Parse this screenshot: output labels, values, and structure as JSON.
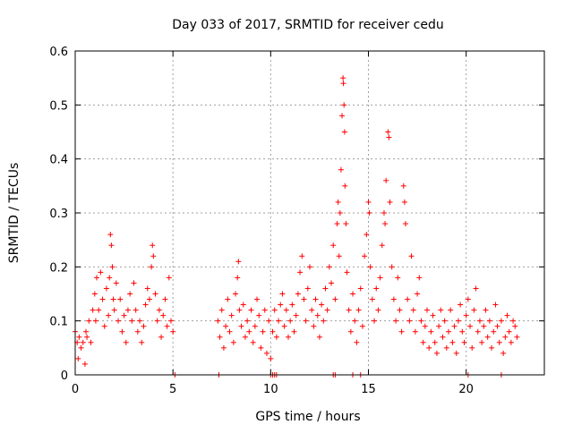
{
  "chart_data": {
    "type": "scatter",
    "title": "Day 033 of 2017, SRMTID for receiver cedu",
    "xlabel": "GPS time / hours",
    "ylabel": "SRMTID / TECUs",
    "xlim": [
      0,
      24
    ],
    "ylim": [
      0,
      0.6
    ],
    "xticks": [
      0,
      5,
      10,
      15,
      20
    ],
    "yticks": [
      0,
      0.1,
      0.2,
      0.3,
      0.4,
      0.5,
      0.6
    ],
    "grid": true,
    "marker": "+",
    "color": "#ff0000",
    "series": [
      {
        "name": "SRMTID",
        "points": [
          [
            0.0,
            0.08
          ],
          [
            0.1,
            0.06
          ],
          [
            0.15,
            0.03
          ],
          [
            0.2,
            0.07
          ],
          [
            0.3,
            0.05
          ],
          [
            0.4,
            0.06
          ],
          [
            0.5,
            0.02
          ],
          [
            0.55,
            0.08
          ],
          [
            0.6,
            0.07
          ],
          [
            0.7,
            0.1
          ],
          [
            0.8,
            0.06
          ],
          [
            0.9,
            0.12
          ],
          [
            1.0,
            0.15
          ],
          [
            1.05,
            0.1
          ],
          [
            1.1,
            0.18
          ],
          [
            1.2,
            0.12
          ],
          [
            1.3,
            0.19
          ],
          [
            1.4,
            0.14
          ],
          [
            1.5,
            0.09
          ],
          [
            1.6,
            0.16
          ],
          [
            1.7,
            0.11
          ],
          [
            1.75,
            0.18
          ],
          [
            1.8,
            0.26
          ],
          [
            1.85,
            0.24
          ],
          [
            1.9,
            0.2
          ],
          [
            1.95,
            0.14
          ],
          [
            2.0,
            0.12
          ],
          [
            2.1,
            0.17
          ],
          [
            2.2,
            0.1
          ],
          [
            2.3,
            0.14
          ],
          [
            2.4,
            0.08
          ],
          [
            2.5,
            0.11
          ],
          [
            2.6,
            0.06
          ],
          [
            2.7,
            0.12
          ],
          [
            2.8,
            0.15
          ],
          [
            2.9,
            0.1
          ],
          [
            3.0,
            0.17
          ],
          [
            3.1,
            0.12
          ],
          [
            3.2,
            0.08
          ],
          [
            3.3,
            0.1
          ],
          [
            3.4,
            0.06
          ],
          [
            3.5,
            0.09
          ],
          [
            3.6,
            0.13
          ],
          [
            3.7,
            0.16
          ],
          [
            3.8,
            0.14
          ],
          [
            3.9,
            0.2
          ],
          [
            3.95,
            0.24
          ],
          [
            4.0,
            0.22
          ],
          [
            4.1,
            0.15
          ],
          [
            4.2,
            0.1
          ],
          [
            4.3,
            0.12
          ],
          [
            4.4,
            0.07
          ],
          [
            4.5,
            0.11
          ],
          [
            4.6,
            0.14
          ],
          [
            4.7,
            0.09
          ],
          [
            4.8,
            0.18
          ],
          [
            4.9,
            0.1
          ],
          [
            5.0,
            0.08
          ],
          [
            7.3,
            0.1
          ],
          [
            7.4,
            0.07
          ],
          [
            7.5,
            0.12
          ],
          [
            7.6,
            0.05
          ],
          [
            7.7,
            0.09
          ],
          [
            7.8,
            0.14
          ],
          [
            7.9,
            0.08
          ],
          [
            8.0,
            0.11
          ],
          [
            8.1,
            0.06
          ],
          [
            8.2,
            0.15
          ],
          [
            8.3,
            0.18
          ],
          [
            8.35,
            0.21
          ],
          [
            8.4,
            0.12
          ],
          [
            8.5,
            0.09
          ],
          [
            8.6,
            0.13
          ],
          [
            8.7,
            0.07
          ],
          [
            8.8,
            0.1
          ],
          [
            8.9,
            0.08
          ],
          [
            9.0,
            0.12
          ],
          [
            9.1,
            0.06
          ],
          [
            9.2,
            0.09
          ],
          [
            9.3,
            0.14
          ],
          [
            9.4,
            0.11
          ],
          [
            9.5,
            0.05
          ],
          [
            9.6,
            0.08
          ],
          [
            9.7,
            0.12
          ],
          [
            9.8,
            0.04
          ],
          [
            9.9,
            0.1
          ],
          [
            10.0,
            0.03
          ],
          [
            10.1,
            0.08
          ],
          [
            10.2,
            0.12
          ],
          [
            10.3,
            0.07
          ],
          [
            10.4,
            0.1
          ],
          [
            10.5,
            0.13
          ],
          [
            10.6,
            0.15
          ],
          [
            10.7,
            0.09
          ],
          [
            10.8,
            0.12
          ],
          [
            10.9,
            0.07
          ],
          [
            11.0,
            0.1
          ],
          [
            11.1,
            0.13
          ],
          [
            11.2,
            0.08
          ],
          [
            11.3,
            0.11
          ],
          [
            11.4,
            0.15
          ],
          [
            11.5,
            0.19
          ],
          [
            11.6,
            0.22
          ],
          [
            11.7,
            0.14
          ],
          [
            11.8,
            0.1
          ],
          [
            11.9,
            0.16
          ],
          [
            12.0,
            0.2
          ],
          [
            12.1,
            0.12
          ],
          [
            12.2,
            0.09
          ],
          [
            12.3,
            0.14
          ],
          [
            12.4,
            0.11
          ],
          [
            12.5,
            0.07
          ],
          [
            12.6,
            0.13
          ],
          [
            12.7,
            0.1
          ],
          [
            12.8,
            0.16
          ],
          [
            12.9,
            0.12
          ],
          [
            13.0,
            0.2
          ],
          [
            13.1,
            0.17
          ],
          [
            13.2,
            0.24
          ],
          [
            13.3,
            0.14
          ],
          [
            13.4,
            0.28
          ],
          [
            13.45,
            0.32
          ],
          [
            13.5,
            0.22
          ],
          [
            13.55,
            0.3
          ],
          [
            13.6,
            0.38
          ],
          [
            13.65,
            0.48
          ],
          [
            13.7,
            0.55
          ],
          [
            13.72,
            0.54
          ],
          [
            13.75,
            0.5
          ],
          [
            13.78,
            0.45
          ],
          [
            13.8,
            0.35
          ],
          [
            13.85,
            0.28
          ],
          [
            13.9,
            0.19
          ],
          [
            14.0,
            0.12
          ],
          [
            14.1,
            0.08
          ],
          [
            14.2,
            0.15
          ],
          [
            14.3,
            0.1
          ],
          [
            14.4,
            0.06
          ],
          [
            14.5,
            0.12
          ],
          [
            14.6,
            0.16
          ],
          [
            14.7,
            0.09
          ],
          [
            14.8,
            0.22
          ],
          [
            14.9,
            0.26
          ],
          [
            15.0,
            0.32
          ],
          [
            15.05,
            0.3
          ],
          [
            15.1,
            0.2
          ],
          [
            15.2,
            0.14
          ],
          [
            15.3,
            0.1
          ],
          [
            15.4,
            0.16
          ],
          [
            15.5,
            0.12
          ],
          [
            15.6,
            0.18
          ],
          [
            15.7,
            0.24
          ],
          [
            15.8,
            0.3
          ],
          [
            15.85,
            0.28
          ],
          [
            15.9,
            0.36
          ],
          [
            16.0,
            0.45
          ],
          [
            16.05,
            0.44
          ],
          [
            16.1,
            0.32
          ],
          [
            16.2,
            0.2
          ],
          [
            16.3,
            0.14
          ],
          [
            16.4,
            0.1
          ],
          [
            16.5,
            0.18
          ],
          [
            16.6,
            0.12
          ],
          [
            16.7,
            0.08
          ],
          [
            16.8,
            0.35
          ],
          [
            16.85,
            0.32
          ],
          [
            16.9,
            0.28
          ],
          [
            17.0,
            0.14
          ],
          [
            17.1,
            0.1
          ],
          [
            17.2,
            0.22
          ],
          [
            17.3,
            0.12
          ],
          [
            17.4,
            0.08
          ],
          [
            17.5,
            0.15
          ],
          [
            17.6,
            0.18
          ],
          [
            17.7,
            0.1
          ],
          [
            17.8,
            0.06
          ],
          [
            17.9,
            0.09
          ],
          [
            18.0,
            0.12
          ],
          [
            18.1,
            0.05
          ],
          [
            18.2,
            0.08
          ],
          [
            18.3,
            0.11
          ],
          [
            18.4,
            0.06
          ],
          [
            18.5,
            0.04
          ],
          [
            18.6,
            0.09
          ],
          [
            18.7,
            0.12
          ],
          [
            18.8,
            0.07
          ],
          [
            18.9,
            0.1
          ],
          [
            19.0,
            0.05
          ],
          [
            19.1,
            0.08
          ],
          [
            19.2,
            0.12
          ],
          [
            19.3,
            0.06
          ],
          [
            19.4,
            0.09
          ],
          [
            19.5,
            0.04
          ],
          [
            19.6,
            0.1
          ],
          [
            19.7,
            0.13
          ],
          [
            19.8,
            0.08
          ],
          [
            19.9,
            0.06
          ],
          [
            20.0,
            0.11
          ],
          [
            20.1,
            0.14
          ],
          [
            20.2,
            0.09
          ],
          [
            20.3,
            0.05
          ],
          [
            20.4,
            0.12
          ],
          [
            20.5,
            0.16
          ],
          [
            20.6,
            0.08
          ],
          [
            20.7,
            0.1
          ],
          [
            20.8,
            0.06
          ],
          [
            20.9,
            0.09
          ],
          [
            21.0,
            0.12
          ],
          [
            21.1,
            0.07
          ],
          [
            21.2,
            0.1
          ],
          [
            21.3,
            0.05
          ],
          [
            21.4,
            0.08
          ],
          [
            21.5,
            0.13
          ],
          [
            21.6,
            0.09
          ],
          [
            21.7,
            0.06
          ],
          [
            21.8,
            0.1
          ],
          [
            21.9,
            0.04
          ],
          [
            22.0,
            0.07
          ],
          [
            22.1,
            0.11
          ],
          [
            22.2,
            0.08
          ],
          [
            22.3,
            0.06
          ],
          [
            22.4,
            0.1
          ],
          [
            22.5,
            0.09
          ],
          [
            22.6,
            0.07
          ]
        ],
        "zero_points": [
          5.1,
          7.35,
          10.0,
          10.1,
          10.2,
          10.3,
          13.2,
          13.3,
          14.2,
          14.6,
          20.1,
          21.8
        ]
      }
    ]
  }
}
